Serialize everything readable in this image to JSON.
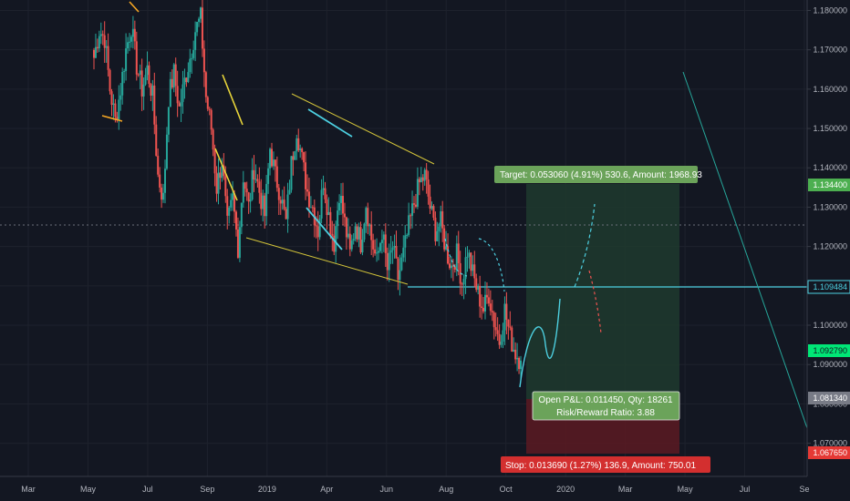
{
  "chart_data": {
    "type": "candlestick",
    "title": "",
    "xlabel": "",
    "ylabel": "",
    "x_ticks": [
      "Mar",
      "May",
      "Jul",
      "Sep",
      "2019",
      "Apr",
      "Jun",
      "Aug",
      "Oct",
      "2020",
      "Mar",
      "May",
      "Jul",
      "Se"
    ],
    "y_ticks": [
      "1.180000",
      "1.170000",
      "1.160000",
      "1.150000",
      "1.140000",
      "1.130000",
      "1.120000",
      "1.110000",
      "1.100000",
      "1.090000",
      "1.080000",
      "1.070000"
    ],
    "ylim": [
      1.0618,
      1.1815
    ],
    "price_levels": [
      {
        "name": "target",
        "value": "1.134400",
        "color": "#4caf50"
      },
      {
        "name": "horizontal-line",
        "value": "1.109484",
        "color": "#4dd0e1"
      },
      {
        "name": "last-price",
        "value": "1.092790",
        "color": "#00e676"
      },
      {
        "name": "entry",
        "value": "1.081340",
        "color": "#787b86"
      },
      {
        "name": "stop",
        "value": "1.067650",
        "color": "#e53935"
      }
    ],
    "close_series": [
      1.168,
      1.175,
      1.173,
      1.16,
      1.152,
      1.16,
      1.17,
      1.176,
      1.166,
      1.16,
      1.165,
      1.158,
      1.138,
      1.132,
      1.158,
      1.164,
      1.155,
      1.162,
      1.168,
      1.175,
      1.178,
      1.158,
      1.15,
      1.135,
      1.142,
      1.125,
      1.132,
      1.12,
      1.138,
      1.13,
      1.14,
      1.134,
      1.128,
      1.145,
      1.138,
      1.133,
      1.126,
      1.141,
      1.15,
      1.142,
      1.134,
      1.13,
      1.124,
      1.137,
      1.128,
      1.121,
      1.134,
      1.126,
      1.118,
      1.126,
      1.121,
      1.131,
      1.122,
      1.116,
      1.124,
      1.114,
      1.12,
      1.112,
      1.118,
      1.125,
      1.131,
      1.136,
      1.138,
      1.13,
      1.124,
      1.126,
      1.119,
      1.115,
      1.118,
      1.111,
      1.119,
      1.113,
      1.108,
      1.104,
      1.108,
      1.101,
      1.096,
      1.104,
      1.097,
      1.093,
      1.091
    ],
    "drawings": [
      {
        "type": "parallel-channel",
        "color": "#d4c53a"
      },
      {
        "type": "trend-line",
        "color": "#26a69a"
      },
      {
        "type": "projection-path",
        "color": "#4dd0e1"
      },
      {
        "type": "projection-path",
        "color": "#ef5350"
      }
    ],
    "long_position": {
      "target_label": "Target: 0.053060 (4.91%) 530.6, Amount: 1968.93",
      "stop_label": "Stop: 0.013690 (1.27%) 136.9, Amount: 750.01",
      "pnl_label": "Open P&L: 0.011450, Qty: 18261",
      "rr_label": "Risk/Reward Ratio: 3.88"
    }
  }
}
